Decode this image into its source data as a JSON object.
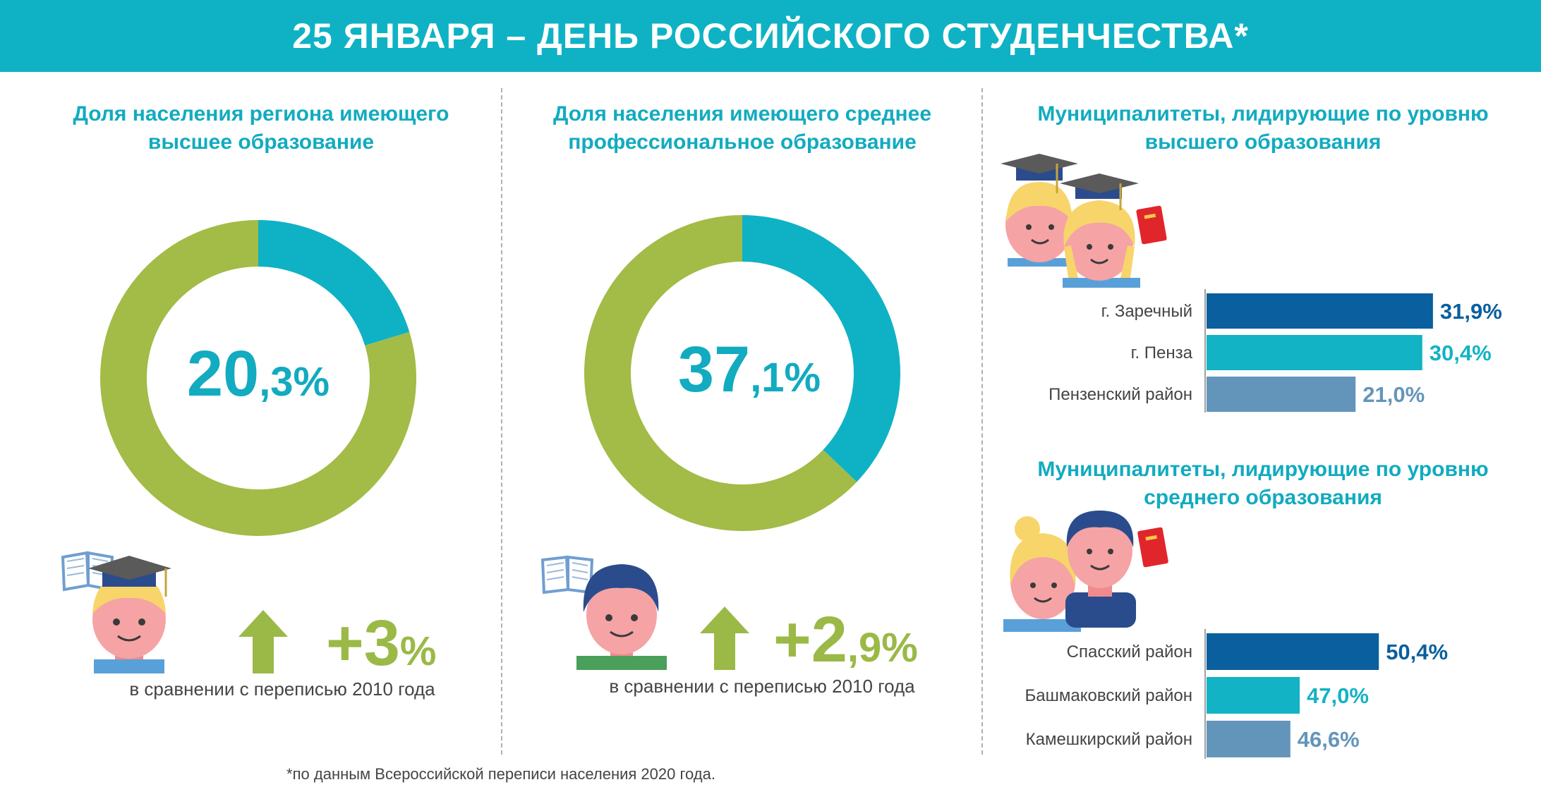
{
  "header": {
    "title": "25 ЯНВАРЯ – ДЕНЬ РОССИЙСКОГО СТУДЕНЧЕСТВА*"
  },
  "panels": [
    {
      "title": "Доля населения региона имеющего высшее образование",
      "value_int": "20",
      "value_frac": ",3%",
      "change_int": "+3",
      "change_frac": "%",
      "caption": "в сравнении с переписью 2010 года"
    },
    {
      "title": "Доля населения имеющего среднее профессиональное образование",
      "value_int": "37",
      "value_frac": ",1%",
      "change_int": "+2",
      "change_frac": ",9%",
      "caption": "в сравнении с переписью 2010 года"
    }
  ],
  "right": {
    "higher_title": "Муниципалитеты, лидирующие по уровню высшего образования",
    "secondary_title": "Муниципалитеты, лидирующие по уровню среднего образования"
  },
  "footnote": "*по данным Всероссийской переписи населения 2020 года.",
  "colors": {
    "accent": "#0fb2c4",
    "green": "#9bb947",
    "dark_blue": "#0a5f9e",
    "teal": "#12b3c4",
    "steel": "#6395ba",
    "arrow": "#9bb947"
  },
  "chart_data": [
    {
      "type": "pie",
      "subtype": "donut",
      "title": "Доля населения региона имеющего высшее образование",
      "values": [
        20.3,
        79.7
      ],
      "colors": [
        "#0fb2c4",
        "#a3bb47"
      ]
    },
    {
      "type": "pie",
      "subtype": "donut",
      "title": "Доля населения имеющего среднее профессиональное образование",
      "values": [
        37.1,
        62.9
      ],
      "colors": [
        "#0fb2c4",
        "#a3bb47"
      ]
    },
    {
      "type": "bar",
      "orientation": "horizontal",
      "title": "Муниципалитеты, лидирующие по уровню высшего образования",
      "categories": [
        "г. Заречный",
        "г. Пенза",
        "Пензенский район"
      ],
      "values": [
        31.9,
        30.4,
        21.0
      ],
      "value_labels": [
        "31,9%",
        "30,4%",
        "21,0%"
      ],
      "colors": [
        "#0a5f9e",
        "#12b3c4",
        "#6395ba"
      ],
      "xlim": [
        0,
        34
      ]
    },
    {
      "type": "bar",
      "orientation": "horizontal",
      "title": "Муниципалитеты, лидирующие по уровню среднего образования",
      "categories": [
        "Спасский район",
        "Башмаковский район",
        "Камешкирский район"
      ],
      "values": [
        50.4,
        47.0,
        46.6
      ],
      "value_labels": [
        "50,4%",
        "47,0%",
        "46,6%"
      ],
      "colors": [
        "#0a5f9e",
        "#12b3c4",
        "#6395ba"
      ],
      "xlim": [
        43,
        53
      ]
    }
  ]
}
